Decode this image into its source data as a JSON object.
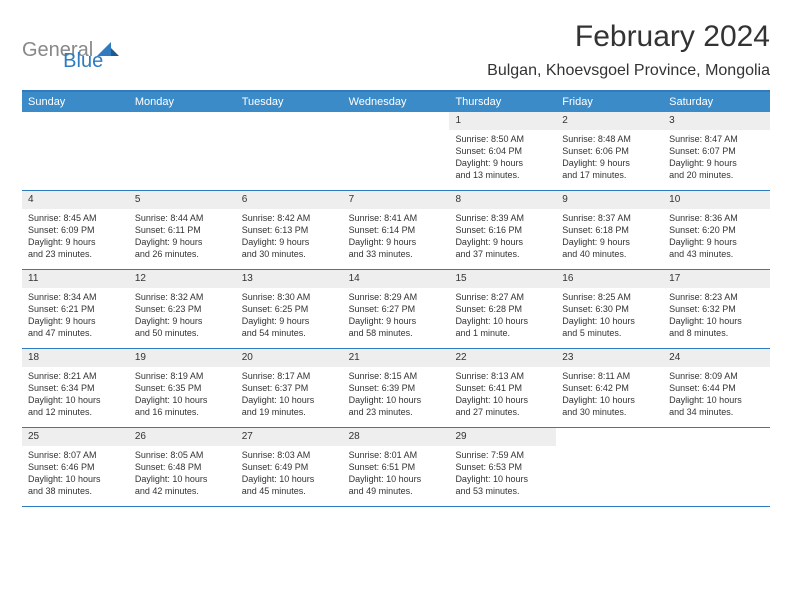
{
  "logo": {
    "text1": "General",
    "text2": "Blue"
  },
  "title": "February 2024",
  "location": "Bulgan, Khoevsgoel Province, Mongolia",
  "dayHeaders": [
    "Sunday",
    "Monday",
    "Tuesday",
    "Wednesday",
    "Thursday",
    "Friday",
    "Saturday"
  ],
  "colors": {
    "accent": "#2e7bc0",
    "headerBg": "#3b8bc9",
    "dayNumBg": "#eeeeee",
    "text": "#333333",
    "logoGray": "#888888"
  },
  "weeks": [
    [
      {
        "empty": true
      },
      {
        "empty": true
      },
      {
        "empty": true
      },
      {
        "empty": true
      },
      {
        "num": "1",
        "sunrise": "Sunrise: 8:50 AM",
        "sunset": "Sunset: 6:04 PM",
        "daylight1": "Daylight: 9 hours",
        "daylight2": "and 13 minutes."
      },
      {
        "num": "2",
        "sunrise": "Sunrise: 8:48 AM",
        "sunset": "Sunset: 6:06 PM",
        "daylight1": "Daylight: 9 hours",
        "daylight2": "and 17 minutes."
      },
      {
        "num": "3",
        "sunrise": "Sunrise: 8:47 AM",
        "sunset": "Sunset: 6:07 PM",
        "daylight1": "Daylight: 9 hours",
        "daylight2": "and 20 minutes."
      }
    ],
    [
      {
        "num": "4",
        "sunrise": "Sunrise: 8:45 AM",
        "sunset": "Sunset: 6:09 PM",
        "daylight1": "Daylight: 9 hours",
        "daylight2": "and 23 minutes."
      },
      {
        "num": "5",
        "sunrise": "Sunrise: 8:44 AM",
        "sunset": "Sunset: 6:11 PM",
        "daylight1": "Daylight: 9 hours",
        "daylight2": "and 26 minutes."
      },
      {
        "num": "6",
        "sunrise": "Sunrise: 8:42 AM",
        "sunset": "Sunset: 6:13 PM",
        "daylight1": "Daylight: 9 hours",
        "daylight2": "and 30 minutes."
      },
      {
        "num": "7",
        "sunrise": "Sunrise: 8:41 AM",
        "sunset": "Sunset: 6:14 PM",
        "daylight1": "Daylight: 9 hours",
        "daylight2": "and 33 minutes."
      },
      {
        "num": "8",
        "sunrise": "Sunrise: 8:39 AM",
        "sunset": "Sunset: 6:16 PM",
        "daylight1": "Daylight: 9 hours",
        "daylight2": "and 37 minutes."
      },
      {
        "num": "9",
        "sunrise": "Sunrise: 8:37 AM",
        "sunset": "Sunset: 6:18 PM",
        "daylight1": "Daylight: 9 hours",
        "daylight2": "and 40 minutes."
      },
      {
        "num": "10",
        "sunrise": "Sunrise: 8:36 AM",
        "sunset": "Sunset: 6:20 PM",
        "daylight1": "Daylight: 9 hours",
        "daylight2": "and 43 minutes."
      }
    ],
    [
      {
        "num": "11",
        "sunrise": "Sunrise: 8:34 AM",
        "sunset": "Sunset: 6:21 PM",
        "daylight1": "Daylight: 9 hours",
        "daylight2": "and 47 minutes."
      },
      {
        "num": "12",
        "sunrise": "Sunrise: 8:32 AM",
        "sunset": "Sunset: 6:23 PM",
        "daylight1": "Daylight: 9 hours",
        "daylight2": "and 50 minutes."
      },
      {
        "num": "13",
        "sunrise": "Sunrise: 8:30 AM",
        "sunset": "Sunset: 6:25 PM",
        "daylight1": "Daylight: 9 hours",
        "daylight2": "and 54 minutes."
      },
      {
        "num": "14",
        "sunrise": "Sunrise: 8:29 AM",
        "sunset": "Sunset: 6:27 PM",
        "daylight1": "Daylight: 9 hours",
        "daylight2": "and 58 minutes."
      },
      {
        "num": "15",
        "sunrise": "Sunrise: 8:27 AM",
        "sunset": "Sunset: 6:28 PM",
        "daylight1": "Daylight: 10 hours",
        "daylight2": "and 1 minute."
      },
      {
        "num": "16",
        "sunrise": "Sunrise: 8:25 AM",
        "sunset": "Sunset: 6:30 PM",
        "daylight1": "Daylight: 10 hours",
        "daylight2": "and 5 minutes."
      },
      {
        "num": "17",
        "sunrise": "Sunrise: 8:23 AM",
        "sunset": "Sunset: 6:32 PM",
        "daylight1": "Daylight: 10 hours",
        "daylight2": "and 8 minutes."
      }
    ],
    [
      {
        "num": "18",
        "sunrise": "Sunrise: 8:21 AM",
        "sunset": "Sunset: 6:34 PM",
        "daylight1": "Daylight: 10 hours",
        "daylight2": "and 12 minutes."
      },
      {
        "num": "19",
        "sunrise": "Sunrise: 8:19 AM",
        "sunset": "Sunset: 6:35 PM",
        "daylight1": "Daylight: 10 hours",
        "daylight2": "and 16 minutes."
      },
      {
        "num": "20",
        "sunrise": "Sunrise: 8:17 AM",
        "sunset": "Sunset: 6:37 PM",
        "daylight1": "Daylight: 10 hours",
        "daylight2": "and 19 minutes."
      },
      {
        "num": "21",
        "sunrise": "Sunrise: 8:15 AM",
        "sunset": "Sunset: 6:39 PM",
        "daylight1": "Daylight: 10 hours",
        "daylight2": "and 23 minutes."
      },
      {
        "num": "22",
        "sunrise": "Sunrise: 8:13 AM",
        "sunset": "Sunset: 6:41 PM",
        "daylight1": "Daylight: 10 hours",
        "daylight2": "and 27 minutes."
      },
      {
        "num": "23",
        "sunrise": "Sunrise: 8:11 AM",
        "sunset": "Sunset: 6:42 PM",
        "daylight1": "Daylight: 10 hours",
        "daylight2": "and 30 minutes."
      },
      {
        "num": "24",
        "sunrise": "Sunrise: 8:09 AM",
        "sunset": "Sunset: 6:44 PM",
        "daylight1": "Daylight: 10 hours",
        "daylight2": "and 34 minutes."
      }
    ],
    [
      {
        "num": "25",
        "sunrise": "Sunrise: 8:07 AM",
        "sunset": "Sunset: 6:46 PM",
        "daylight1": "Daylight: 10 hours",
        "daylight2": "and 38 minutes."
      },
      {
        "num": "26",
        "sunrise": "Sunrise: 8:05 AM",
        "sunset": "Sunset: 6:48 PM",
        "daylight1": "Daylight: 10 hours",
        "daylight2": "and 42 minutes."
      },
      {
        "num": "27",
        "sunrise": "Sunrise: 8:03 AM",
        "sunset": "Sunset: 6:49 PM",
        "daylight1": "Daylight: 10 hours",
        "daylight2": "and 45 minutes."
      },
      {
        "num": "28",
        "sunrise": "Sunrise: 8:01 AM",
        "sunset": "Sunset: 6:51 PM",
        "daylight1": "Daylight: 10 hours",
        "daylight2": "and 49 minutes."
      },
      {
        "num": "29",
        "sunrise": "Sunrise: 7:59 AM",
        "sunset": "Sunset: 6:53 PM",
        "daylight1": "Daylight: 10 hours",
        "daylight2": "and 53 minutes."
      },
      {
        "empty": true
      },
      {
        "empty": true
      }
    ]
  ]
}
